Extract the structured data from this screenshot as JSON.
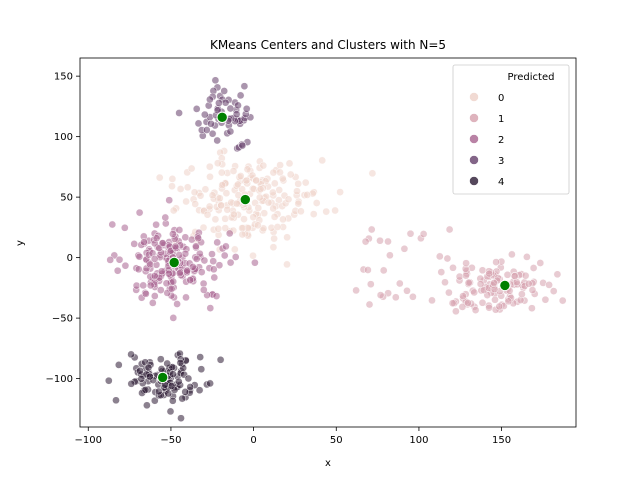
{
  "chart_data": {
    "type": "scatter",
    "title": "KMeans Centers and Clusters with N=5",
    "xlabel": "x",
    "ylabel": "y",
    "xlim": [
      -105,
      195
    ],
    "ylim": [
      -140,
      165
    ],
    "x_ticks": [
      -100,
      -50,
      0,
      50,
      100,
      150
    ],
    "y_ticks": [
      -100,
      -50,
      0,
      50,
      100,
      150
    ],
    "grid": false,
    "legend": {
      "title": "Predicted",
      "position": "top-right",
      "entries": [
        "0",
        "1",
        "2",
        "3",
        "4"
      ]
    },
    "colors": {
      "cluster_0": "#eed1c8",
      "cluster_1": "#d6a0ad",
      "cluster_2": "#a7638f",
      "cluster_3": "#643e6a",
      "cluster_4": "#2b1a33",
      "center": "#008000"
    },
    "clusters": [
      {
        "label": "0",
        "center": [
          -5,
          48
        ],
        "spread": [
          22,
          20
        ],
        "count": 200
      },
      {
        "label": "1",
        "center": [
          150,
          -25
        ],
        "spread": [
          16,
          12
        ],
        "count": 120
      },
      {
        "label": "2",
        "center": [
          -48,
          -5
        ],
        "spread": [
          16,
          18
        ],
        "count": 200
      },
      {
        "label": "3",
        "center": [
          -20,
          117
        ],
        "spread": [
          10,
          12
        ],
        "count": 60
      },
      {
        "label": "4",
        "center": [
          -55,
          -100
        ],
        "spread": [
          12,
          10
        ],
        "count": 110
      }
    ],
    "centers": [
      {
        "x": -5,
        "y": 48
      },
      {
        "x": 152,
        "y": -23
      },
      {
        "x": -48,
        "y": -4
      },
      {
        "x": -19,
        "y": 116
      },
      {
        "x": -55,
        "y": -99
      }
    ]
  }
}
